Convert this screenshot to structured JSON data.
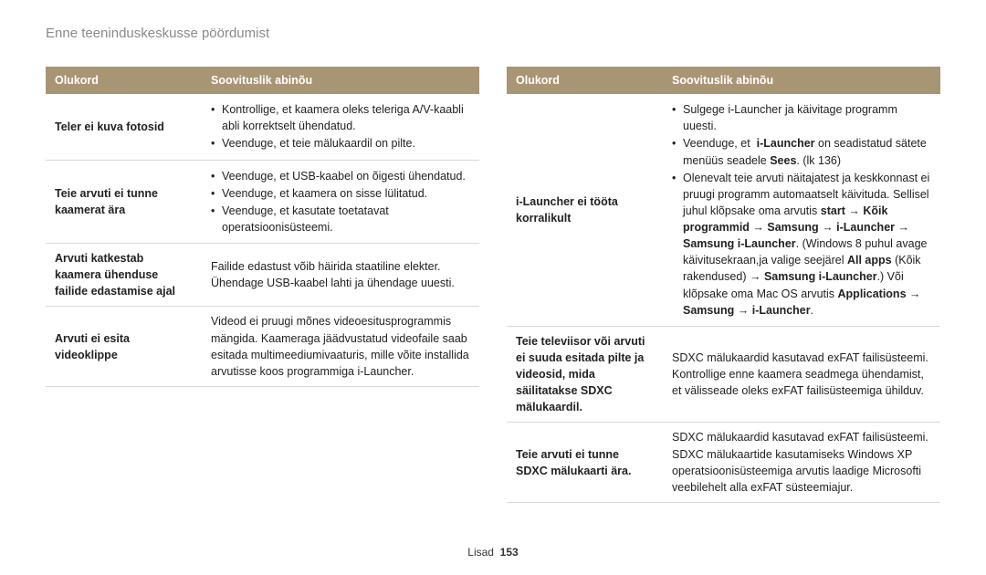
{
  "page_title": "Enne teeninduskeskusse pöördumist",
  "footer": {
    "section": "Lisad",
    "page_num": "153"
  },
  "headers": {
    "situation": "Olukord",
    "remedy": "Soovituslik abinõu"
  },
  "colors": {
    "header_bg": "#a89574",
    "header_text": "#ffffff",
    "title_text": "#8a8a8a",
    "border": "#d9d9d9",
    "body_text": "#222222",
    "background": "#ffffff"
  },
  "left_rows": [
    {
      "situation": "Teler ei kuva fotosid",
      "remedy_items": [
        "Kontrollige, et kaamera oleks teleriga A/V-kaabli abli korrektselt ühendatud.",
        "Veenduge, et teie mälukaardil on pilte."
      ]
    },
    {
      "situation": "Teie arvuti ei tunne kaamerat ära",
      "remedy_items": [
        "Veenduge, et USB-kaabel on õigesti ühendatud.",
        "Veenduge, et kaamera on sisse lülitatud.",
        "Veenduge, et kasutate toetatavat operatsioonisüsteemi."
      ]
    },
    {
      "situation": "Arvuti katkestab kaamera ühenduse failide edastamise ajal",
      "remedy_text": "Failide edastust võib häirida staatiline elekter. Ühendage USB-kaabel lahti ja ühendage uuesti."
    },
    {
      "situation": "Arvuti ei esita videoklippe",
      "remedy_text": "Videod ei pruugi mõnes videoesitusprogrammis mängida. Kaameraga jäädvustatud videofaile saab esitada multimeediumivaaturis, mille võite installida arvutisse koos programmiga i-Launcher."
    }
  ],
  "right_rows": [
    {
      "situation": "i-Launcher ei tööta korralikult",
      "remedy_html": "<ul><li>Sulgege i-Launcher ja käivitage programm uuesti.</li><li>Veenduge, et &nbsp;<b>i-Launcher</b> on seadistatud sätete menüüs seadele <b>Sees</b>. (lk 136)</li><li>Olenevalt teie arvuti näitajatest ja keskkonnast ei pruugi programm automaatselt käivituda. Sellisel juhul klõpsake oma arvutis <b>start</b> → <b>Kõik programmid</b> → <b>Samsung</b> → <b>i-Launcher</b> → <b>Samsung i-Launcher</b>. (Windows 8 puhul avage käivitusekraan,ja valige seejärel <b>All apps</b> (Kõik rakendused) → <b>Samsung i-Launcher</b>.) Või klõpsake oma Mac OS arvutis <b>Applications</b> → <b>Samsung</b> → <b>i-Launcher</b>.</li></ul>"
    },
    {
      "situation": "Teie televiisor või arvuti ei suuda esitada pilte ja videosid, mida säilitatakse SDXC mälukaardil.",
      "remedy_text": "SDXC mälukaardid kasutavad exFAT failisüsteemi. Kontrollige enne kaamera seadmega ühendamist, et välisseade oleks exFAT failisüsteemiga ühilduv."
    },
    {
      "situation": "Teie arvuti ei tunne SDXC mälukaarti ära.",
      "remedy_text": "SDXC mälukaardid kasutavad exFAT failisüsteemi. SDXC mälukaartide kasutamiseks Windows XP operatsioonisüsteemiga arvutis laadige Microsofti veebilehelt alla exFAT süsteemiajur."
    }
  ]
}
